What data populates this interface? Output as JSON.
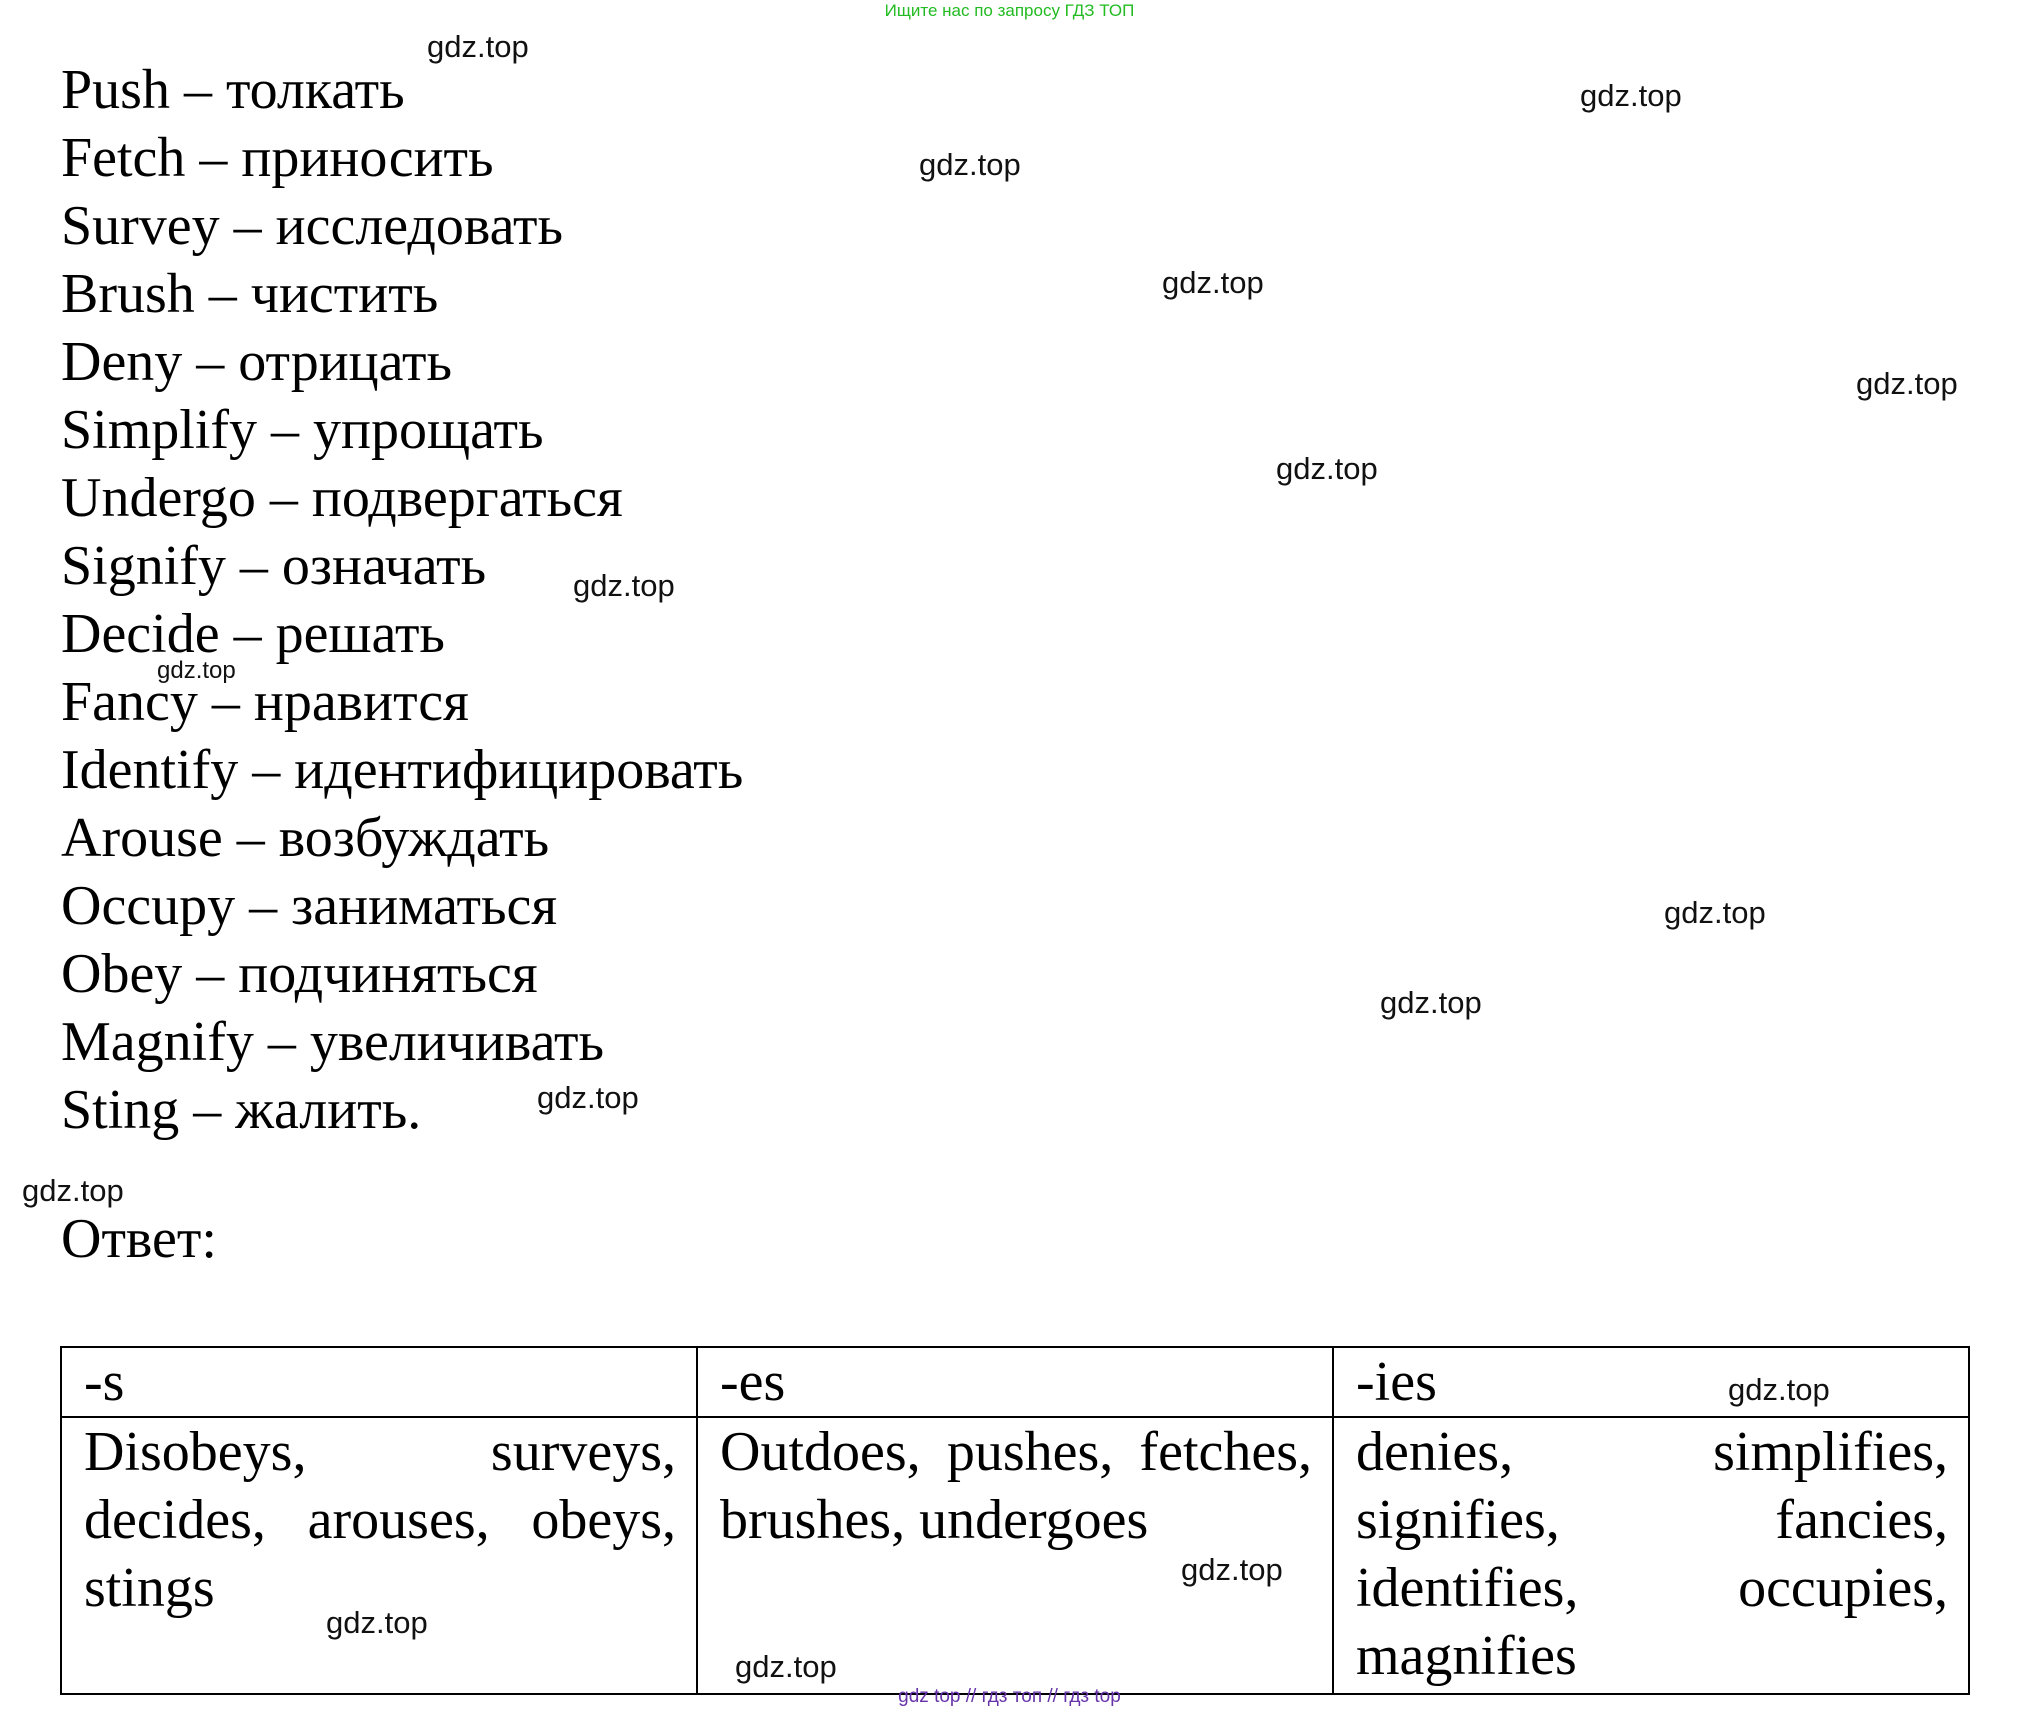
{
  "header": {
    "banner": "Ищите нас по запросу ГДЗ ТОП"
  },
  "vocabulary": [
    "Push – толкать",
    "Fetch – приносить",
    "Survey – исследовать",
    "Brush – чистить",
    "Deny – отрицать",
    "Simplify – упрощать",
    "Undergo – подвергаться",
    "Signify – означать",
    "Decide – решать",
    "Fancy – нравится",
    "Identify – идентифицировать",
    "Arouse – возбуждать",
    "Occupy – заниматься",
    "Obey – подчиняться",
    "Magnify – увеличивать",
    "Sting – жалить."
  ],
  "answer": {
    "label": "Ответ:",
    "columns": [
      "-s",
      "-es",
      "-ies"
    ],
    "cells": [
      "Disobeys, surveys, decides, arouses, obeys, stings",
      "Outdoes, pushes, fetches, brushes, undergoes",
      "denies, simplifies, signifies, fancies, identifies, occupies, magnifies"
    ]
  },
  "watermark": "gdz.top",
  "footer": {
    "links": [
      "gdz top",
      "гдз топ",
      "гдз top"
    ],
    "separator": "//"
  }
}
